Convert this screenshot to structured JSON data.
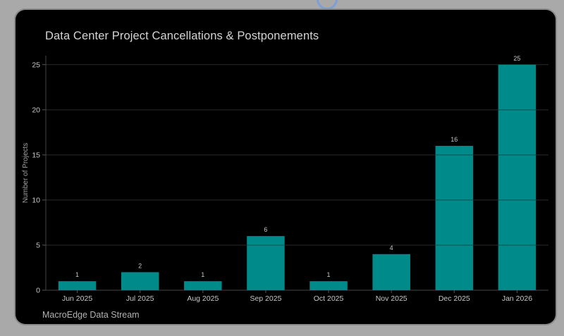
{
  "title": "Data Center Project Cancellations & Postponements",
  "footer": "MacroEdge Data Stream",
  "colors": {
    "bar": "#008b8b",
    "grid": "#2a2a2a",
    "text": "#c8c8c8",
    "background": "#000000"
  },
  "chart_data": {
    "type": "bar",
    "title": "Data Center Project Cancellations & Postponements",
    "xlabel": "",
    "ylabel": "Number of Projects",
    "categories": [
      "Jun 2025",
      "Jul 2025",
      "Aug 2025",
      "Sep 2025",
      "Oct 2025",
      "Nov 2025",
      "Dec 2025",
      "Jan 2026"
    ],
    "values": [
      1,
      2,
      1,
      6,
      1,
      4,
      16,
      25
    ],
    "ylim": [
      0,
      26
    ],
    "yticks": [
      0,
      5,
      10,
      15,
      20,
      25
    ],
    "grid": true,
    "data_labels": true
  }
}
